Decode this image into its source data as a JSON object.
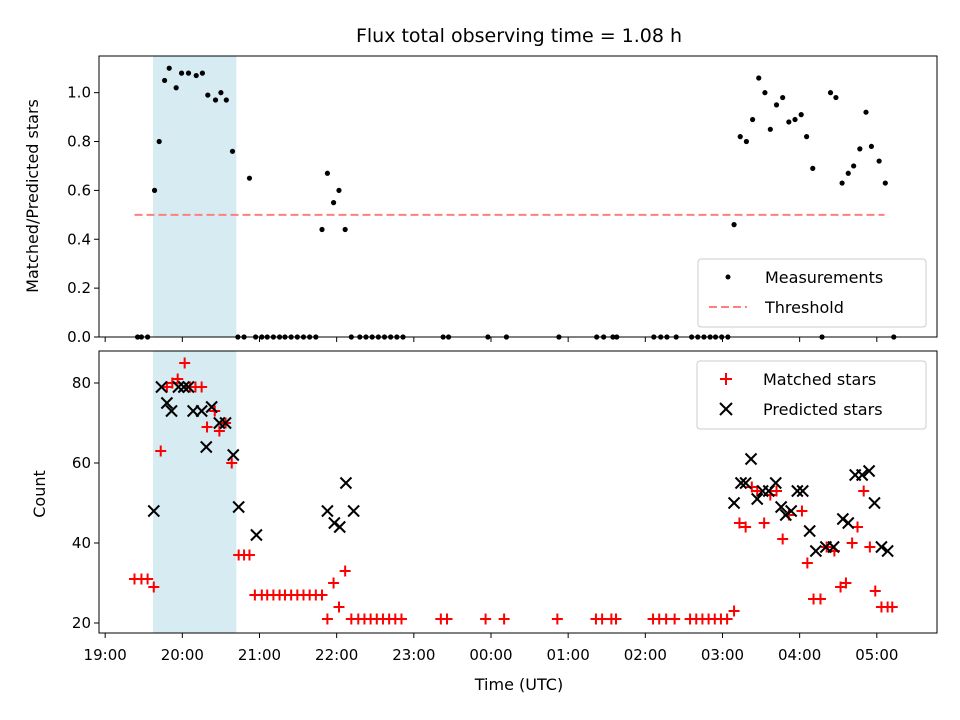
{
  "chart_data": {
    "title": "Flux total observing time = 1.08 h",
    "xlabel": "Time (UTC)",
    "xlim_hours": [
      18.92,
      29.78
    ],
    "x_ticks": [
      {
        "h": 19,
        "label": "19:00"
      },
      {
        "h": 20,
        "label": "20:00"
      },
      {
        "h": 21,
        "label": "21:00"
      },
      {
        "h": 22,
        "label": "22:00"
      },
      {
        "h": 23,
        "label": "23:00"
      },
      {
        "h": 24,
        "label": "00:00"
      },
      {
        "h": 25,
        "label": "01:00"
      },
      {
        "h": 26,
        "label": "02:00"
      },
      {
        "h": 27,
        "label": "03:00"
      },
      {
        "h": 28,
        "label": "04:00"
      },
      {
        "h": 29,
        "label": "05:00"
      }
    ],
    "shaded_span": {
      "start_h": 19.62,
      "end_h": 20.7,
      "color": "#add8e6"
    },
    "panels": [
      {
        "type": "scatter",
        "ylabel": "Matched/Predicted stars",
        "ylim": [
          0,
          1.15
        ],
        "y_ticks": [
          0.0,
          0.2,
          0.4,
          0.6,
          0.8,
          1.0
        ],
        "y_tick_labels": [
          "0.0",
          "0.2",
          "0.4",
          "0.6",
          "0.8",
          "1.0"
        ],
        "threshold": {
          "y": 0.5,
          "x_start_h": 19.38,
          "x_end_h": 29.1,
          "color": "#ff7f7f"
        },
        "legend": [
          "Measurements",
          "Threshold"
        ],
        "series": [
          {
            "name": "Measurements",
            "color": "#000000",
            "x": [
              19.42,
              19.47,
              19.55,
              19.64,
              19.7,
              19.77,
              19.83,
              19.92,
              19.99,
              20.08,
              20.18,
              20.26,
              20.33,
              20.43,
              20.5,
              20.57,
              20.65,
              20.72,
              20.8,
              20.87,
              20.95,
              21.03,
              21.1,
              21.18,
              21.26,
              21.33,
              21.41,
              21.49,
              21.57,
              21.65,
              21.73,
              21.81,
              21.88,
              21.96,
              22.03,
              22.11,
              22.19,
              22.3,
              22.38,
              22.46,
              22.54,
              22.62,
              22.7,
              22.78,
              22.86,
              23.38,
              23.45,
              23.96,
              24.2,
              24.88,
              25.37,
              25.46,
              25.58,
              25.63,
              26.11,
              26.2,
              26.28,
              26.4,
              26.6,
              26.68,
              26.76,
              26.84,
              26.91,
              26.99,
              27.07,
              27.15,
              27.23,
              27.31,
              27.39,
              27.47,
              27.55,
              27.62,
              27.7,
              27.78,
              27.86,
              27.94,
              28.02,
              28.09,
              28.17,
              28.29,
              28.4,
              28.47,
              28.55,
              28.63,
              28.7,
              28.78,
              28.86,
              28.93,
              29.03,
              29.11,
              29.22
            ],
            "y": [
              0,
              0,
              0,
              0.6,
              0.8,
              1.05,
              1.1,
              1.02,
              1.08,
              1.08,
              1.07,
              1.08,
              0.99,
              0.97,
              1.0,
              0.97,
              0.76,
              0,
              0,
              0.65,
              0,
              0,
              0,
              0,
              0,
              0,
              0,
              0,
              0,
              0,
              0,
              0.44,
              0.67,
              0.55,
              0.6,
              0.44,
              0,
              0,
              0,
              0,
              0,
              0,
              0,
              0,
              0,
              0,
              0,
              0,
              0,
              0,
              0,
              0,
              0,
              0,
              0,
              0,
              0,
              0,
              0,
              0,
              0,
              0,
              0,
              0,
              0,
              0.46,
              0.82,
              0.8,
              0.89,
              1.06,
              1.0,
              0.85,
              0.95,
              0.98,
              0.88,
              0.89,
              0.91,
              0.82,
              0.69,
              0,
              1.0,
              0.98,
              0.63,
              0.67,
              0.7,
              0.77,
              0.92,
              0.78,
              0.72,
              0.63,
              0
            ]
          }
        ]
      },
      {
        "type": "scatter",
        "ylabel": "Count",
        "ylim": [
          17.5,
          88
        ],
        "y_ticks": [
          20,
          40,
          60,
          80
        ],
        "y_tick_labels": [
          "20",
          "40",
          "60",
          "80"
        ],
        "legend": [
          "Matched stars",
          "Predicted stars"
        ],
        "series": [
          {
            "name": "Matched stars",
            "marker": "plus",
            "color": "#ff0000",
            "x": [
              19.38,
              19.47,
              19.55,
              19.63,
              19.72,
              19.8,
              19.87,
              19.94,
              20.03,
              20.1,
              20.17,
              20.25,
              20.32,
              20.42,
              20.48,
              20.56,
              20.64,
              20.73,
              20.8,
              20.87,
              20.94,
              21.03,
              21.1,
              21.18,
              21.26,
              21.33,
              21.41,
              21.49,
              21.57,
              21.65,
              21.73,
              21.81,
              21.88,
              21.96,
              22.03,
              22.11,
              22.19,
              22.28,
              22.36,
              22.44,
              22.52,
              22.6,
              22.68,
              22.76,
              22.84,
              23.35,
              23.43,
              23.93,
              24.17,
              24.86,
              25.36,
              25.44,
              25.56,
              25.62,
              26.1,
              26.18,
              26.27,
              26.38,
              26.58,
              26.66,
              26.74,
              26.82,
              26.9,
              26.98,
              27.06,
              27.15,
              27.22,
              27.3,
              27.38,
              27.45,
              27.54,
              27.62,
              27.7,
              27.78,
              27.86,
              28.03,
              28.1,
              28.18,
              28.27,
              28.35,
              28.45,
              28.53,
              28.6,
              28.68,
              28.75,
              28.83,
              28.91,
              28.98,
              29.06,
              29.14,
              29.2
            ],
            "y": [
              31,
              31,
              31,
              29,
              63,
              79,
              80,
              81,
              85,
              79,
              79,
              79,
              69,
              73,
              68,
              70,
              60,
              37,
              37,
              37,
              27,
              27,
              27,
              27,
              27,
              27,
              27,
              27,
              27,
              27,
              27,
              27,
              21,
              30,
              24,
              33,
              21,
              21,
              21,
              21,
              21,
              21,
              21,
              21,
              21,
              21,
              21,
              21,
              21,
              21,
              21,
              21,
              21,
              21,
              21,
              21,
              21,
              21,
              21,
              21,
              21,
              21,
              21,
              21,
              21,
              23,
              45,
              44,
              54,
              53,
              45,
              52,
              53,
              41,
              47,
              48,
              35,
              26,
              26,
              39,
              38,
              29,
              30,
              40,
              44,
              53,
              39,
              28,
              24,
              24,
              24
            ]
          },
          {
            "name": "Predicted stars",
            "marker": "x",
            "color": "#000000",
            "x": [
              19.63,
              19.73,
              19.8,
              19.86,
              19.95,
              20.02,
              20.08,
              20.14,
              20.25,
              20.31,
              20.38,
              20.48,
              20.56,
              20.66,
              20.73,
              20.96,
              21.88,
              21.97,
              22.04,
              22.12,
              22.22,
              27.15,
              27.24,
              27.3,
              27.37,
              27.45,
              27.52,
              27.6,
              27.69,
              27.76,
              27.82,
              27.89,
              27.97,
              28.04,
              28.13,
              28.21,
              28.34,
              28.44,
              28.56,
              28.63,
              28.72,
              28.81,
              28.9,
              28.97,
              29.06,
              29.14
            ],
            "y": [
              48,
              79,
              75,
              73,
              79,
              79,
              79,
              73,
              73,
              64,
              74,
              70,
              70,
              62,
              49,
              42,
              48,
              45,
              44,
              55,
              48,
              50,
              55,
              55,
              61,
              51,
              53,
              53,
              55,
              49,
              47,
              48,
              53,
              53,
              43,
              38,
              39,
              39,
              46,
              45,
              57,
              57,
              58,
              50,
              39,
              38
            ]
          }
        ]
      }
    ]
  }
}
